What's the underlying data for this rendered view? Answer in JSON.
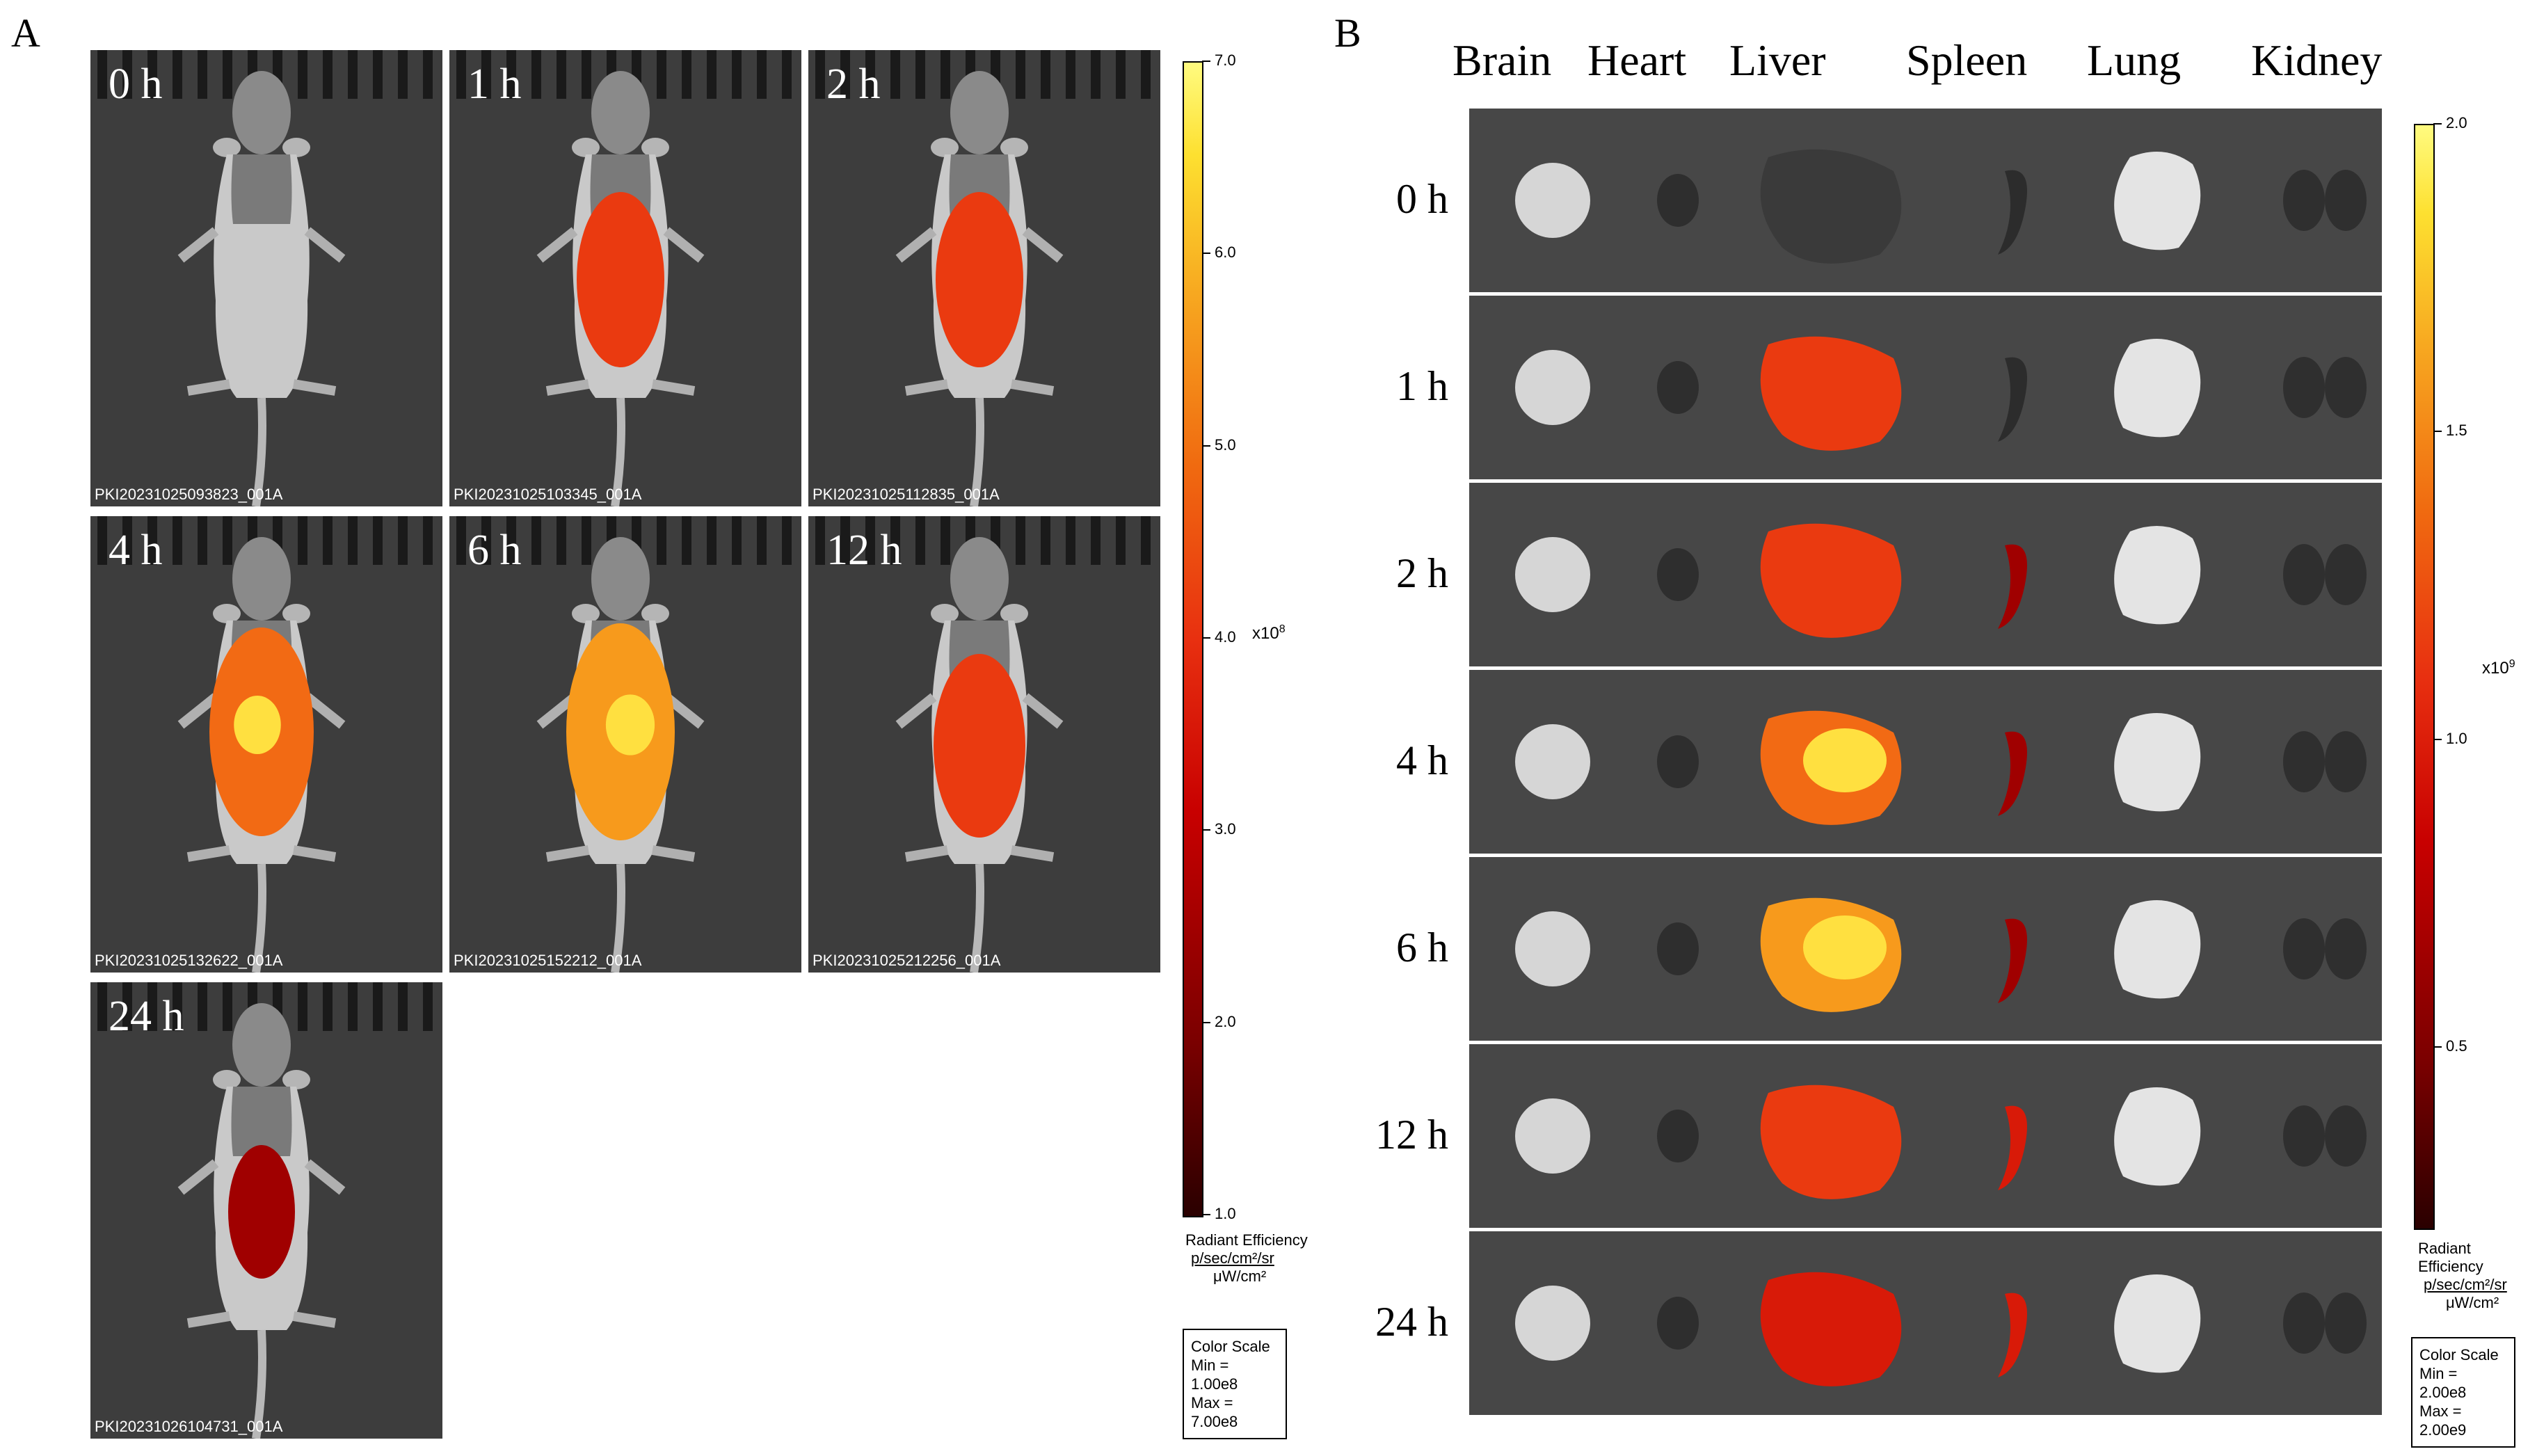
{
  "panel_a": {
    "letter": "A",
    "tiles": [
      {
        "time": "0 h",
        "file": "PKI20231025093823_001A",
        "signal": 0
      },
      {
        "time": "1 h",
        "file": "PKI20231025103345_001A",
        "signal": 0.55
      },
      {
        "time": "2 h",
        "file": "PKI20231025112835_001A",
        "signal": 0.55
      },
      {
        "time": "4 h",
        "file": "PKI20231025132622_001A",
        "signal": 0.75
      },
      {
        "time": "6 h",
        "file": "PKI20231025152212_001A",
        "signal": 0.8
      },
      {
        "time": "12 h",
        "file": "PKI20231025212256_001A",
        "signal": 0.6
      },
      {
        "time": "24 h",
        "file": "PKI20231026104731_001A",
        "signal": 0.3
      }
    ],
    "colorbar": {
      "ticks": [
        "7.0",
        "6.0",
        "5.0",
        "4.0",
        "3.0",
        "2.0",
        "1.0"
      ],
      "exponent": "x10",
      "exponent_power": "8",
      "unit_title": "Radiant Efficiency",
      "unit_num": "p/sec/cm²/sr",
      "unit_den": "μW/cm²",
      "scale_title": "Color Scale",
      "scale_min": "Min = 1.00e8",
      "scale_max": "Max = 7.00e8"
    }
  },
  "panel_b": {
    "letter": "B",
    "organs": [
      "Brain",
      "Heart",
      "Liver",
      "Spleen",
      "Lung",
      "Kidney"
    ],
    "rows": [
      {
        "time": "0 h",
        "liver": 0,
        "spleen": 0
      },
      {
        "time": "1 h",
        "liver": 0.55,
        "spleen": 0
      },
      {
        "time": "2 h",
        "liver": 0.6,
        "spleen": 0.3
      },
      {
        "time": "4 h",
        "liver": 0.75,
        "spleen": 0.3
      },
      {
        "time": "6 h",
        "liver": 0.85,
        "spleen": 0.3
      },
      {
        "time": "12 h",
        "liver": 0.55,
        "spleen": 0.5
      },
      {
        "time": "24 h",
        "liver": 0.35,
        "spleen": 0.4
      }
    ],
    "colorbar": {
      "ticks": [
        "2.0",
        "1.5",
        "1.0",
        "0.5"
      ],
      "exponent": "x10",
      "exponent_power": "9",
      "unit_title": "Radiant Efficiency",
      "unit_num": "p/sec/cm²/sr",
      "unit_den": "μW/cm²",
      "scale_title": "Color Scale",
      "scale_min": "Min = 2.00e8",
      "scale_max": "Max = 2.00e9"
    }
  }
}
